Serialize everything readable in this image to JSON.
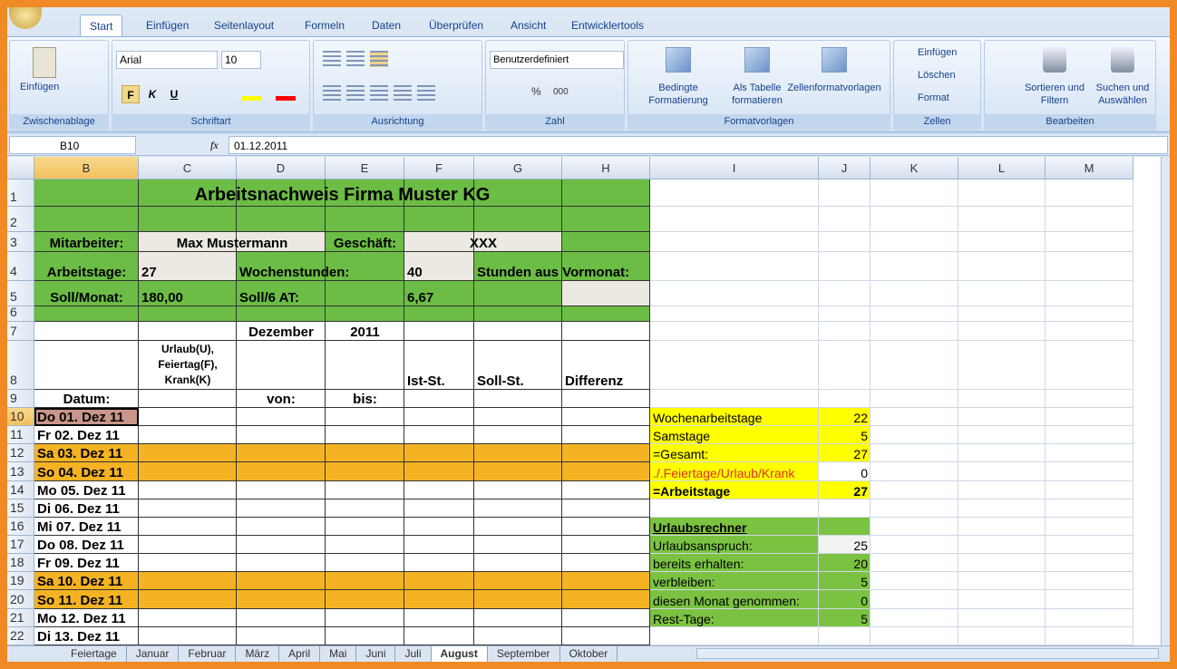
{
  "ribbon": {
    "tabs": [
      "Start",
      "Einfügen",
      "Seitenlayout",
      "Formeln",
      "Daten",
      "Überprüfen",
      "Ansicht",
      "Entwicklertools"
    ],
    "groups": [
      "Zwischenablage",
      "Schriftart",
      "Ausrichtung",
      "Zahl",
      "Formatvorlagen",
      "Zellen",
      "Bearbeiten"
    ],
    "paste": "Einfügen",
    "font": {
      "name": "Arial",
      "size": "10",
      "bold": "F",
      "italic": "K",
      "underline": "U"
    },
    "number": {
      "format": "Benutzerdefiniert",
      "percent": "%",
      "thousands": "000"
    },
    "styles": [
      "Bedingte Formatierung",
      "Als Tabelle formatieren",
      "Zellenformatvorlagen"
    ],
    "cells": [
      "Einfügen",
      "Löschen",
      "Format"
    ],
    "editing": [
      "Sortieren und Filtern",
      "Suchen und Auswählen"
    ]
  },
  "formula_bar": {
    "name_box": "B10",
    "fx": "fx",
    "content": "01.12.2011"
  },
  "columns": [
    "B",
    "C",
    "D",
    "E",
    "F",
    "G",
    "H",
    "I",
    "J",
    "K",
    "L",
    "M"
  ],
  "rows": [
    1,
    2,
    3,
    4,
    5,
    6,
    7,
    8,
    9,
    10,
    11,
    12,
    13,
    14,
    15,
    16,
    17,
    18,
    19,
    20,
    21,
    22
  ],
  "cells": {
    "B1:H1": "Arbeitsnachweis Firma Muster KG",
    "B3": "Mitarbeiter:",
    "C3:D3": "Max Mustermann",
    "E3": "Geschäft:",
    "F3:G3": "XXX",
    "B4": "Arbeitstage:",
    "C4": "27",
    "D4:E4": "Wochenstunden:",
    "F4": "40",
    "G4:H4": "Stunden aus Vormonat:",
    "B5": "Soll/Monat:",
    "C5": "180,00",
    "D5": "Soll/6 AT:",
    "F5": "6,67",
    "D7": "Dezember",
    "E7": "2011",
    "C8": "Urlaub(U), Feiertag(F), Krank(K)",
    "F8": "Ist-St.",
    "G8": "Soll-St.",
    "H8": "Differenz",
    "B9": "Datum:",
    "D9": "von:",
    "E9": "bis:",
    "B10": "Do 01. Dez 11",
    "B11": "Fr 02. Dez 11",
    "B12": "Sa 03. Dez 11",
    "B13": "So 04. Dez 11",
    "B14": "Mo 05. Dez 11",
    "B15": "Di 06. Dez 11",
    "B16": "Mi 07. Dez 11",
    "B17": "Do 08. Dez 11",
    "B18": "Fr 09. Dez 11",
    "B19": "Sa 10. Dez 11",
    "B20": "So 11. Dez 11",
    "B21": "Mo 12. Dez 11",
    "B22": "Di 13. Dez 11",
    "I10": "Wochenarbeitstage",
    "J10": "22",
    "I11": "Samstage",
    "J11": "5",
    "I12": "=Gesamt:",
    "J12": "27",
    "I13": "./.Feiertage/Urlaub/Krank",
    "J13": "0",
    "I14": "=Arbeitstage",
    "J14": "27",
    "I16": "Urlaubsrechner",
    "I17": "Urlaubsanspruch:",
    "J17": "25",
    "I18": "bereits erhalten:",
    "J18": "20",
    "I19": "verbleiben:",
    "J19": "5",
    "I20": "diesen Monat genommen:",
    "J20": "0",
    "I21": "Rest-Tage:",
    "J21": "5"
  },
  "sheets": [
    "Feiertage",
    "Januar",
    "Februar",
    "März",
    "April",
    "Mai",
    "Juni",
    "Juli",
    "August",
    "September",
    "Oktober"
  ],
  "active_sheet": "August"
}
